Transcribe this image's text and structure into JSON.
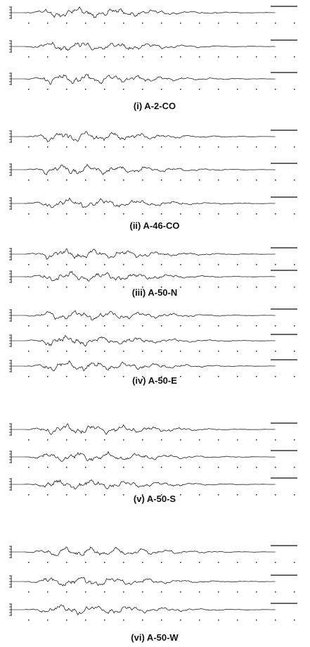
{
  "panels": [
    {
      "caption": "(i) A-2-CO"
    },
    {
      "caption": "(ii) A-46-CO"
    },
    {
      "caption": "(iii) A-50-N"
    },
    {
      "caption": "(iv) A-50-E"
    },
    {
      "caption": "(v) A-50-S"
    },
    {
      "caption": "(vi) A-50-W"
    }
  ]
}
